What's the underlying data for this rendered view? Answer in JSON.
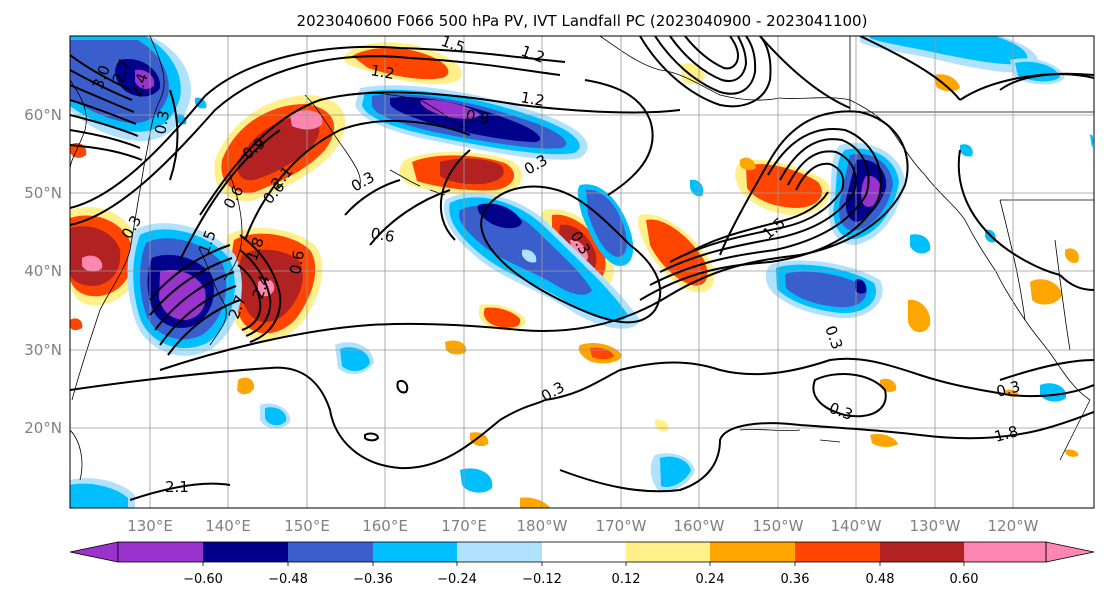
{
  "title": "2023040600 F066 500 hPa PV, IVT Landfall PC (2023040900 - 2023041100)",
  "map": {
    "lat_ticks": [
      "60°N",
      "50°N",
      "40°N",
      "30°N",
      "20°N"
    ],
    "lon_ticks": [
      "130°E",
      "140°E",
      "150°E",
      "160°E",
      "170°E",
      "180°W",
      "170°W",
      "160°W",
      "150°W",
      "140°W",
      "130°W",
      "120°W"
    ],
    "contour_labels": [
      "3.0",
      "2.7",
      "2.4",
      "0.3",
      "1.5",
      "1.2",
      "1.2",
      "0.9",
      "1.2",
      "0.6",
      "0.9",
      "0.3",
      "0.6",
      "2.1",
      "1.8",
      "1.5",
      "2.4",
      "2.7",
      "0.6",
      "0.3",
      "0.3",
      "0.6",
      "0.3",
      "0.3",
      "0.3",
      "0.3",
      "0.3",
      "1.8",
      "2.1",
      "1.5"
    ]
  },
  "colorbar": {
    "colors": [
      "#9a32cd",
      "#00008b",
      "#3a5fcd",
      "#00bfff",
      "#b0e2ff",
      "#ffffff",
      "#fff08a",
      "#ffa500",
      "#ff4500",
      "#b22222",
      "#ff86b0"
    ],
    "tick_labels": [
      "−0.60",
      "−0.48",
      "−0.36",
      "−0.24",
      "−0.12",
      "0.12",
      "0.24",
      "0.36",
      "0.48",
      "0.60"
    ]
  }
}
